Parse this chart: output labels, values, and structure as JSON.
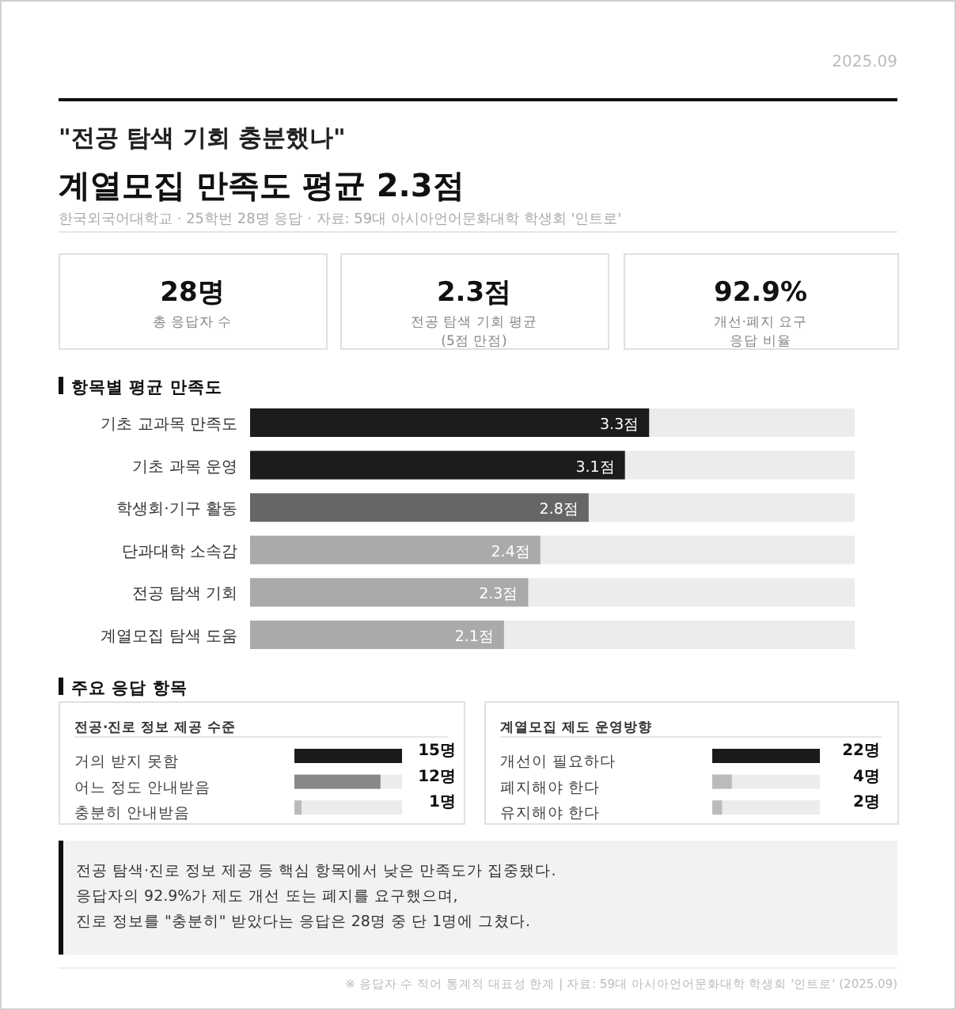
{
  "chart_data": [
    {
      "type": "other",
      "title": "계열모집 만족도 평균 2.3점",
      "subtitle": "\"전공 탐색 기회 충분했나\"",
      "annotations": [
        "2025.09",
        "한국외국어대학교 · 25학번 28명 응답 · 자료: 59대 아시아언어문화대학 학생회 '인트로'",
        "28명",
        "총 응답자 수",
        "2.3점",
        "전공 탐색 기회 평균",
        "(5점 만점)",
        "92.9%",
        "개선·폐지 요구",
        "응답 비율"
      ]
    },
    {
      "type": "bar",
      "orientation": "horizontal",
      "title": "항목별 평균 만족도",
      "categories": [
        "기초 교과목 만족도",
        "기초 과목 운영",
        "학생회·기구 활동",
        "단과대학 소속감",
        "전공 탐색 기회",
        "계열모집 탐색 도움"
      ],
      "values": [
        3.3,
        3.1,
        2.8,
        2.4,
        2.3,
        2.1
      ],
      "colors": [
        "#1c1c1c",
        "#1c1c1c",
        "#666666",
        "#aaaaaa",
        "#aaaaaa",
        "#aaaaaa"
      ],
      "value_labels": [
        "3.3점",
        "3.1점",
        "2.8점",
        "2.4점",
        "2.3점",
        "2.1점"
      ],
      "xlim": [
        0,
        5
      ]
    },
    {
      "type": "bar",
      "orientation": "horizontal",
      "title": "전공·진로 정보 제공 수준",
      "categories": [
        "거의 받지 못함",
        "어느 정도 안내받음",
        "충분히 안내받음"
      ],
      "values": [
        15,
        12,
        1
      ],
      "colors": [
        "#1a1a1a",
        "#888888",
        "#bbbbbb"
      ],
      "value_labels": [
        "15명",
        "12명",
        "1명"
      ],
      "xlim": [
        0,
        15
      ]
    },
    {
      "type": "bar",
      "orientation": "horizontal",
      "title": "계열모집 제도 운영방향",
      "categories": [
        "개선이 필요하다",
        "폐지해야 한다",
        "유지해야 한다"
      ],
      "values": [
        22,
        4,
        2
      ],
      "colors": [
        "#1a1a1a",
        "#bbbbbb",
        "#bbbbbb"
      ],
      "value_labels": [
        "22명",
        "4명",
        "2명"
      ],
      "xlim": [
        0,
        22
      ]
    },
    {
      "type": "other",
      "title": "주요 응답 항목",
      "annotations": [
        "전공 탐색·진로 정보 제공 등 핵심 항목에서 낮은 만족도가 집중됐다.",
        "응답자의 92.9%가 제도 개선 또는 폐지를 요구했으며,",
        "진로 정보를 \"충분히\" 받았다는 응답은 28명 중 단 1명에 그쳤다.",
        "※ 응답자 수 적어 통계적 대표성 한계 | 자료: 59대 아시아언어문화대학 학생회 '인트로' (2025.09)"
      ]
    }
  ]
}
